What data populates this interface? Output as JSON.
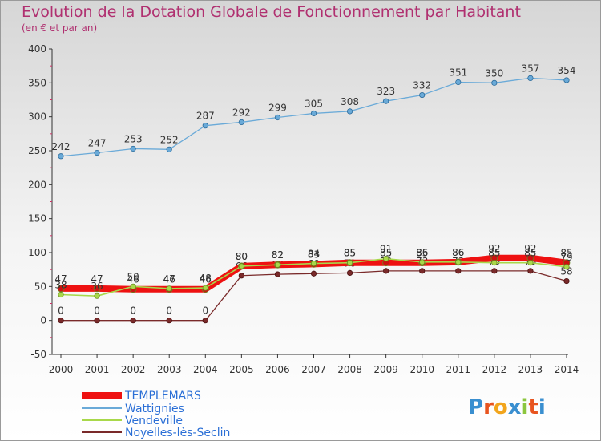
{
  "title": "Evolution de la Dotation Globale de Fonctionnement par Habitant",
  "subtitle": "(en € et par an)",
  "logo": {
    "letters": [
      "P",
      "r",
      "o",
      "x",
      "i",
      "t",
      "i"
    ],
    "colors": [
      "#3a8fd0",
      "#e8541f",
      "#f2a51c",
      "#3a8fd0",
      "#8cc63e",
      "#e8541f",
      "#3a8fd0"
    ]
  },
  "chart_data": {
    "type": "line",
    "title": "Evolution de la Dotation Globale de Fonctionnement par Habitant",
    "subtitle": "(en € et par an)",
    "x": [
      "2000",
      "2001",
      "2002",
      "2003",
      "2004",
      "2005",
      "2006",
      "2007",
      "2008",
      "2009",
      "2010",
      "2011",
      "2012",
      "2013",
      "2014"
    ],
    "ylim": [
      -50,
      400
    ],
    "yticks": [
      "-50",
      "0",
      "50",
      "100",
      "150",
      "200",
      "250",
      "300",
      "350",
      "400"
    ],
    "grid": false,
    "legend_position": "bottom-left",
    "series": [
      {
        "name": "TEMPLEMARS",
        "color": "#ee1111",
        "values": [
          47,
          47,
          46,
          46,
          46,
          80,
          82,
          83,
          85,
          85,
          85,
          86,
          92,
          92,
          85
        ],
        "labels": [
          "47",
          "47",
          "46",
          "46",
          "46",
          "80",
          "82",
          "83",
          "85",
          "85",
          "85",
          "86",
          "92",
          "92",
          "85"
        ]
      },
      {
        "name": "Wattignies",
        "color": "#6aaad8",
        "values": [
          242,
          247,
          253,
          252,
          287,
          292,
          299,
          305,
          308,
          323,
          332,
          351,
          350,
          357,
          354
        ],
        "labels": [
          "242",
          "247",
          "253",
          "252",
          "287",
          "292",
          "299",
          "305",
          "308",
          "323",
          "332",
          "351",
          "350",
          "357",
          "354"
        ]
      },
      {
        "name": "Vendeville",
        "color": "#a8d84a",
        "values": [
          38,
          36,
          50,
          47,
          48,
          80,
          82,
          84,
          85,
          91,
          86,
          86,
          85,
          85,
          79
        ],
        "labels": [
          "38",
          "36",
          "50",
          "47",
          "48",
          "80",
          "82",
          "84",
          "85",
          "91",
          "86",
          "86",
          "85",
          "85",
          "79"
        ]
      },
      {
        "name": "Noyelles-lès-Seclin",
        "color": "#7a2a2a",
        "values": [
          0,
          0,
          0,
          0,
          0,
          66,
          68,
          69,
          70,
          73,
          73,
          73,
          73,
          73,
          58
        ],
        "labels": [
          "0",
          "0",
          "0",
          "0",
          "0",
          "66",
          "68",
          "69",
          "70",
          "73",
          "73",
          "73",
          "73",
          "73",
          "58"
        ]
      }
    ]
  }
}
